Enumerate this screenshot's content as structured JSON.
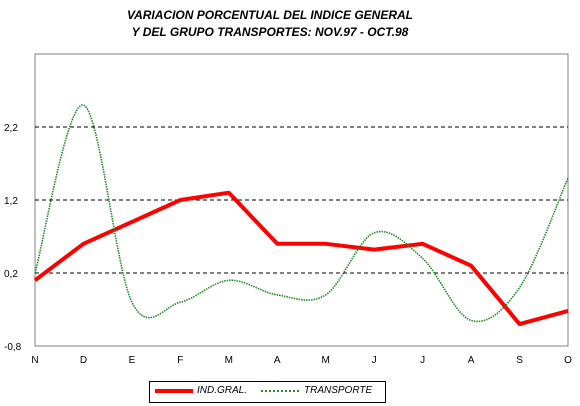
{
  "chart_data": {
    "type": "line",
    "title_line1": "VARIACION PORCENTUAL DEL INDICE GENERAL",
    "title_line2": "Y DEL GRUPO TRANSPORTES: NOV.97 - OCT.98",
    "categories": [
      "N",
      "D",
      "E",
      "F",
      "M",
      "A",
      "M",
      "J",
      "J",
      "A",
      "S",
      "O"
    ],
    "ylim": [
      -0.8,
      3.2
    ],
    "yticks": [
      "2,2",
      "1,2",
      "0,2",
      "-0,8"
    ],
    "ytick_values": [
      2.2,
      1.2,
      0.2,
      -0.8
    ],
    "grid": "dashed horizontal",
    "legend_position": "bottom",
    "series": [
      {
        "name": "IND.GRAL.",
        "color": "#ff0000",
        "style": "solid",
        "values": [
          0.1,
          0.6,
          0.9,
          1.2,
          1.3,
          0.6,
          0.6,
          0.52,
          0.6,
          0.3,
          -0.5,
          -0.32
        ]
      },
      {
        "name": "TRANSPORTE",
        "color": "#228b22",
        "style": "dotted-smooth",
        "values": [
          0.2,
          2.5,
          -0.2,
          -0.2,
          0.1,
          -0.1,
          -0.1,
          0.75,
          0.4,
          -0.45,
          0.0,
          1.5
        ]
      }
    ]
  }
}
